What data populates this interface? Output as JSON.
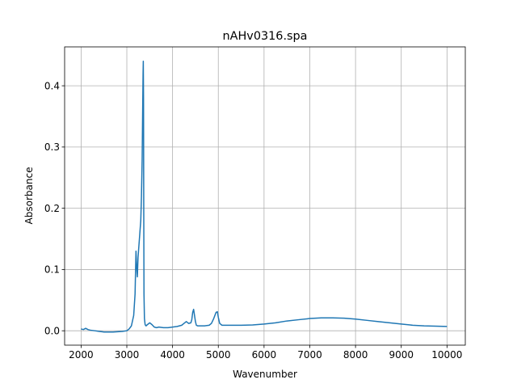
{
  "chart_data": {
    "type": "line",
    "title": "nAHv0316.spa",
    "xlabel": "Wavenumber",
    "ylabel": "Absorbance",
    "xlim": [
      1640,
      10400
    ],
    "ylim": [
      -0.0235,
      0.4635
    ],
    "xticks": [
      2000,
      3000,
      4000,
      5000,
      6000,
      7000,
      8000,
      9000,
      10000
    ],
    "xtick_labels": [
      "2000",
      "3000",
      "4000",
      "5000",
      "6000",
      "7000",
      "8000",
      "9000",
      "10000"
    ],
    "yticks": [
      0.0,
      0.1,
      0.2,
      0.3,
      0.4
    ],
    "ytick_labels": [
      "0.0",
      "0.1",
      "0.2",
      "0.3",
      "0.4"
    ],
    "grid": true,
    "line_color": "#1f77b4",
    "series": [
      {
        "x": [
          2000,
          2050,
          2100,
          2150,
          2200,
          2300,
          2400,
          2500,
          2600,
          2700,
          2800,
          2900,
          3000,
          3050,
          3100,
          3150,
          3180,
          3200,
          3215,
          3230,
          3245,
          3260,
          3275,
          3290,
          3305,
          3320,
          3335,
          3345,
          3355,
          3360,
          3365,
          3370,
          3375,
          3385,
          3400,
          3420,
          3450,
          3500,
          3550,
          3600,
          3650,
          3700,
          3800,
          3900,
          4000,
          4100,
          4200,
          4250,
          4300,
          4350,
          4400,
          4420,
          4440,
          4460,
          4480,
          4500,
          4520,
          4550,
          4600,
          4700,
          4800,
          4850,
          4900,
          4950,
          4980,
          5000,
          5030,
          5080,
          5150,
          5300,
          5500,
          5750,
          6000,
          6250,
          6500,
          6750,
          7000,
          7250,
          7500,
          7750,
          8000,
          8250,
          8500,
          8750,
          9000,
          9250,
          9500,
          9750,
          10000
        ],
        "y": [
          0.003,
          0.002,
          0.004,
          0.002,
          0.001,
          0.0,
          -0.001,
          -0.002,
          -0.002,
          -0.002,
          -0.0015,
          -0.001,
          0.0,
          0.003,
          0.008,
          0.025,
          0.06,
          0.13,
          0.105,
          0.088,
          0.12,
          0.135,
          0.15,
          0.165,
          0.18,
          0.22,
          0.28,
          0.35,
          0.42,
          0.44,
          0.38,
          0.2,
          0.06,
          0.02,
          0.01,
          0.008,
          0.01,
          0.013,
          0.01,
          0.006,
          0.005,
          0.006,
          0.005,
          0.005,
          0.006,
          0.007,
          0.009,
          0.012,
          0.015,
          0.012,
          0.013,
          0.018,
          0.03,
          0.035,
          0.025,
          0.015,
          0.009,
          0.008,
          0.008,
          0.008,
          0.009,
          0.012,
          0.02,
          0.03,
          0.031,
          0.022,
          0.012,
          0.009,
          0.009,
          0.009,
          0.009,
          0.0095,
          0.011,
          0.013,
          0.016,
          0.018,
          0.02,
          0.021,
          0.021,
          0.0205,
          0.019,
          0.017,
          0.015,
          0.013,
          0.011,
          0.009,
          0.008,
          0.0075,
          0.007
        ]
      }
    ]
  }
}
